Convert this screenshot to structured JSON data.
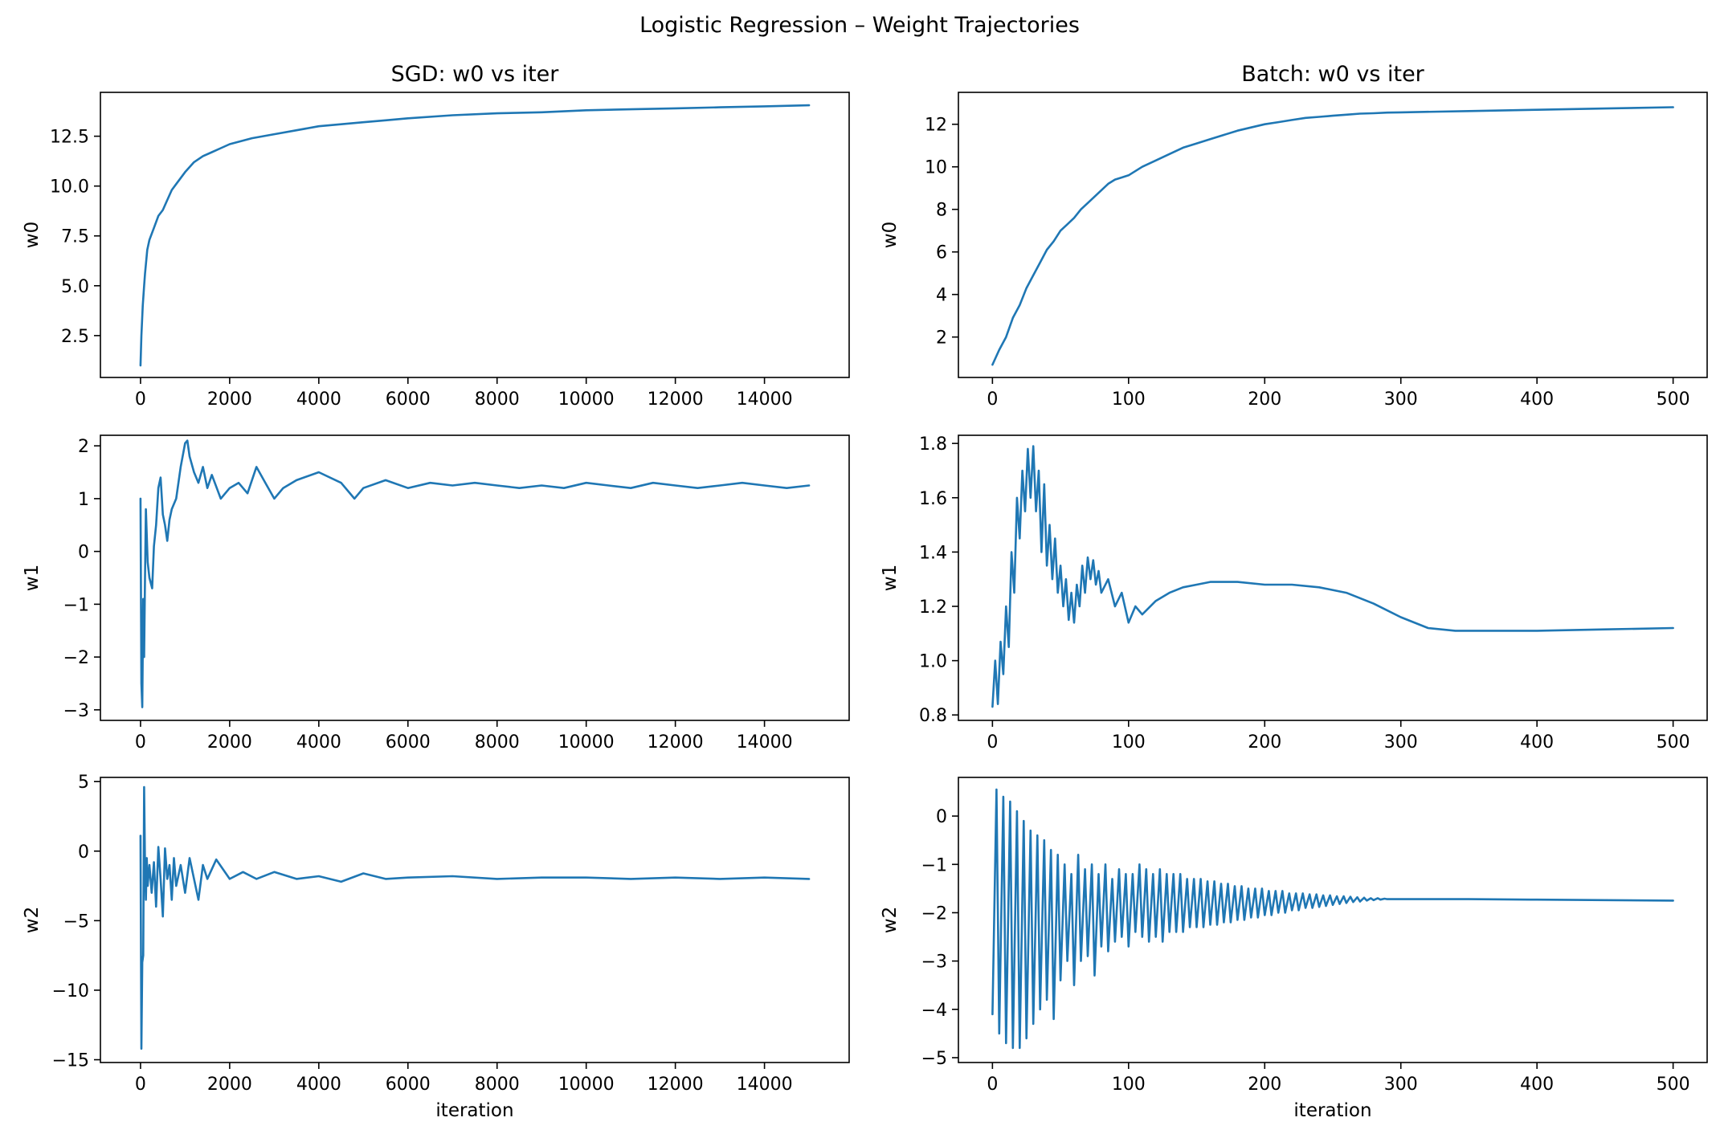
{
  "figure": {
    "suptitle": "Logistic Regression – Weight Trajectories",
    "line_color": "#1f77b4"
  },
  "chart_data": [
    {
      "type": "line",
      "title": "SGD: w0 vs iter",
      "xlabel": "",
      "ylabel": "w0",
      "xlim": [
        -900,
        15900
      ],
      "ylim": [
        0.4,
        14.7
      ],
      "xticks": [
        0,
        2000,
        4000,
        6000,
        8000,
        10000,
        12000,
        14000
      ],
      "yticks": [
        2.5,
        5.0,
        7.5,
        10.0,
        12.5
      ],
      "ytick_labels": [
        "2.5",
        "5.0",
        "7.5",
        "10.0",
        "12.5"
      ],
      "grid": false,
      "series": [
        {
          "x": [
            0,
            20,
            50,
            80,
            100,
            150,
            200,
            300,
            400,
            500,
            600,
            700,
            800,
            900,
            1000,
            1200,
            1400,
            1600,
            1800,
            2000,
            2500,
            3000,
            3500,
            4000,
            4500,
            5000,
            5500,
            6000,
            7000,
            8000,
            9000,
            10000,
            11000,
            12000,
            13000,
            14000,
            15000
          ],
          "y": [
            1.0,
            2.5,
            4.0,
            5.0,
            5.6,
            6.8,
            7.3,
            7.9,
            8.5,
            8.8,
            9.3,
            9.8,
            10.1,
            10.4,
            10.7,
            11.2,
            11.5,
            11.7,
            11.9,
            12.1,
            12.4,
            12.6,
            12.8,
            13.0,
            13.1,
            13.2,
            13.3,
            13.4,
            13.55,
            13.65,
            13.7,
            13.8,
            13.85,
            13.9,
            13.95,
            14.0,
            14.05
          ]
        }
      ]
    },
    {
      "type": "line",
      "title": "Batch: w0 vs iter",
      "xlabel": "",
      "ylabel": "w0",
      "xlim": [
        -25,
        525
      ],
      "ylim": [
        0.1,
        13.5
      ],
      "xticks": [
        0,
        100,
        200,
        300,
        400,
        500
      ],
      "yticks": [
        2,
        4,
        6,
        8,
        10,
        12
      ],
      "grid": false,
      "series": [
        {
          "x": [
            0,
            5,
            10,
            15,
            20,
            25,
            30,
            35,
            40,
            45,
            50,
            55,
            60,
            65,
            70,
            75,
            80,
            85,
            90,
            95,
            100,
            110,
            120,
            130,
            140,
            150,
            160,
            170,
            180,
            190,
            200,
            210,
            220,
            230,
            240,
            250,
            260,
            270,
            280,
            290,
            300,
            350,
            400,
            450,
            500
          ],
          "y": [
            0.7,
            1.4,
            2.0,
            2.9,
            3.5,
            4.3,
            4.9,
            5.5,
            6.1,
            6.5,
            7.0,
            7.3,
            7.6,
            8.0,
            8.3,
            8.6,
            8.9,
            9.2,
            9.4,
            9.5,
            9.6,
            10.0,
            10.3,
            10.6,
            10.9,
            11.1,
            11.3,
            11.5,
            11.7,
            11.85,
            12.0,
            12.1,
            12.2,
            12.3,
            12.35,
            12.4,
            12.45,
            12.5,
            12.52,
            12.55,
            12.56,
            12.62,
            12.68,
            12.74,
            12.8
          ]
        }
      ]
    },
    {
      "type": "line",
      "title": "",
      "xlabel": "",
      "ylabel": "w1",
      "xlim": [
        -900,
        15900
      ],
      "ylim": [
        -3.2,
        2.2
      ],
      "xticks": [
        0,
        2000,
        4000,
        6000,
        8000,
        10000,
        12000,
        14000
      ],
      "yticks": [
        -3,
        -2,
        -1,
        0,
        1,
        2
      ],
      "ytick_labels": [
        "−3",
        "−2",
        "−1",
        "0",
        "1",
        "2"
      ],
      "grid": false,
      "series": [
        {
          "x": [
            0,
            20,
            40,
            60,
            80,
            100,
            120,
            160,
            200,
            260,
            300,
            350,
            400,
            450,
            500,
            550,
            600,
            650,
            700,
            800,
            900,
            1000,
            1050,
            1100,
            1200,
            1300,
            1400,
            1500,
            1600,
            1800,
            2000,
            2200,
            2400,
            2600,
            2800,
            3000,
            3200,
            3500,
            4000,
            4500,
            4800,
            5000,
            5500,
            6000,
            6500,
            7000,
            7500,
            8000,
            8500,
            9000,
            9500,
            10000,
            10500,
            11000,
            11500,
            12000,
            12500,
            13000,
            13500,
            14000,
            14500,
            15000
          ],
          "y": [
            1.0,
            -2.5,
            -2.95,
            -0.9,
            -2.0,
            -0.5,
            0.8,
            -0.2,
            -0.5,
            -0.7,
            0.1,
            0.5,
            1.2,
            1.4,
            0.7,
            0.5,
            0.2,
            0.6,
            0.8,
            1.0,
            1.6,
            2.05,
            2.1,
            1.8,
            1.5,
            1.3,
            1.6,
            1.2,
            1.45,
            1.0,
            1.2,
            1.3,
            1.1,
            1.6,
            1.3,
            1.0,
            1.2,
            1.35,
            1.5,
            1.3,
            1.0,
            1.2,
            1.35,
            1.2,
            1.3,
            1.25,
            1.3,
            1.25,
            1.2,
            1.25,
            1.2,
            1.3,
            1.25,
            1.2,
            1.3,
            1.25,
            1.2,
            1.25,
            1.3,
            1.25,
            1.2,
            1.25
          ]
        }
      ]
    },
    {
      "type": "line",
      "title": "",
      "xlabel": "",
      "ylabel": "w1",
      "xlim": [
        -25,
        525
      ],
      "ylim": [
        0.78,
        1.83
      ],
      "xticks": [
        0,
        100,
        200,
        300,
        400,
        500
      ],
      "yticks": [
        0.8,
        1.0,
        1.2,
        1.4,
        1.6,
        1.8
      ],
      "ytick_labels": [
        "0.8",
        "1.0",
        "1.2",
        "1.4",
        "1.6",
        "1.8"
      ],
      "grid": false,
      "series": [
        {
          "x": [
            0,
            2,
            4,
            6,
            8,
            10,
            12,
            14,
            16,
            18,
            20,
            22,
            24,
            26,
            28,
            30,
            32,
            34,
            36,
            38,
            40,
            42,
            44,
            46,
            48,
            50,
            52,
            54,
            56,
            58,
            60,
            62,
            64,
            66,
            68,
            70,
            72,
            74,
            76,
            78,
            80,
            85,
            90,
            95,
            100,
            105,
            110,
            120,
            130,
            140,
            150,
            160,
            180,
            200,
            220,
            240,
            260,
            280,
            300,
            320,
            340,
            360,
            380,
            400,
            450,
            500
          ],
          "y": [
            0.83,
            1.0,
            0.84,
            1.07,
            0.95,
            1.2,
            1.05,
            1.4,
            1.25,
            1.6,
            1.45,
            1.7,
            1.55,
            1.78,
            1.6,
            1.79,
            1.55,
            1.7,
            1.4,
            1.65,
            1.35,
            1.5,
            1.3,
            1.45,
            1.25,
            1.35,
            1.2,
            1.3,
            1.15,
            1.25,
            1.14,
            1.28,
            1.2,
            1.35,
            1.25,
            1.38,
            1.3,
            1.37,
            1.28,
            1.33,
            1.25,
            1.3,
            1.2,
            1.25,
            1.14,
            1.2,
            1.17,
            1.22,
            1.25,
            1.27,
            1.28,
            1.29,
            1.29,
            1.28,
            1.28,
            1.27,
            1.25,
            1.21,
            1.16,
            1.12,
            1.11,
            1.11,
            1.11,
            1.11,
            1.115,
            1.12
          ]
        }
      ]
    },
    {
      "type": "line",
      "title": "",
      "xlabel": "iteration",
      "ylabel": "w2",
      "xlim": [
        -900,
        15900
      ],
      "ylim": [
        -15.2,
        5.3
      ],
      "xticks": [
        0,
        2000,
        4000,
        6000,
        8000,
        10000,
        12000,
        14000
      ],
      "yticks": [
        -15,
        -10,
        -5,
        0,
        5
      ],
      "ytick_labels": [
        "−15",
        "−10",
        "−5",
        "0",
        "5"
      ],
      "grid": false,
      "series": [
        {
          "x": [
            0,
            20,
            40,
            60,
            80,
            100,
            120,
            140,
            160,
            200,
            250,
            300,
            350,
            400,
            450,
            500,
            550,
            600,
            650,
            700,
            750,
            800,
            900,
            1000,
            1100,
            1200,
            1300,
            1400,
            1500,
            1700,
            2000,
            2300,
            2600,
            3000,
            3500,
            4000,
            4500,
            5000,
            5500,
            6000,
            7000,
            8000,
            9000,
            10000,
            11000,
            12000,
            13000,
            14000,
            15000
          ],
          "y": [
            1.1,
            -14.2,
            -8.0,
            -7.5,
            4.6,
            -1.0,
            -3.5,
            -0.5,
            -2.5,
            -1.0,
            -3.0,
            -0.8,
            -4.0,
            0.3,
            -2.0,
            -4.7,
            0.2,
            -2.0,
            -1.0,
            -3.5,
            -0.5,
            -2.5,
            -1.0,
            -3.0,
            -0.5,
            -2.0,
            -3.5,
            -1.0,
            -2.0,
            -0.6,
            -2.0,
            -1.5,
            -2.0,
            -1.5,
            -2.0,
            -1.8,
            -2.2,
            -1.6,
            -2.0,
            -1.9,
            -1.8,
            -2.0,
            -1.9,
            -1.9,
            -2.0,
            -1.9,
            -2.0,
            -1.9,
            -2.0
          ]
        }
      ]
    },
    {
      "type": "line",
      "title": "",
      "xlabel": "iteration",
      "ylabel": "w2",
      "xlim": [
        -25,
        525
      ],
      "ylim": [
        -5.1,
        0.8
      ],
      "xticks": [
        0,
        100,
        200,
        300,
        400,
        500
      ],
      "yticks": [
        -5,
        -4,
        -3,
        -2,
        -1,
        0
      ],
      "ytick_labels": [
        "−5",
        "−4",
        "−3",
        "−2",
        "−1",
        "0"
      ],
      "grid": false,
      "series": [
        {
          "x": [
            0,
            3,
            5,
            8,
            10,
            13,
            15,
            18,
            20,
            23,
            25,
            28,
            30,
            33,
            35,
            38,
            40,
            43,
            45,
            48,
            50,
            53,
            55,
            58,
            60,
            63,
            65,
            68,
            70,
            73,
            75,
            78,
            80,
            83,
            85,
            88,
            90,
            93,
            95,
            98,
            100,
            103,
            105,
            108,
            110,
            113,
            115,
            118,
            120,
            123,
            125,
            128,
            130,
            133,
            135,
            138,
            140,
            143,
            145,
            148,
            150,
            153,
            155,
            158,
            160,
            163,
            165,
            168,
            170,
            173,
            175,
            178,
            180,
            183,
            185,
            188,
            190,
            193,
            195,
            198,
            200,
            203,
            205,
            208,
            210,
            213,
            215,
            218,
            220,
            223,
            225,
            228,
            230,
            233,
            235,
            238,
            240,
            243,
            245,
            248,
            250,
            253,
            255,
            258,
            260,
            263,
            265,
            268,
            270,
            273,
            275,
            278,
            280,
            283,
            285,
            288,
            290,
            300,
            320,
            350,
            400,
            450,
            500
          ],
          "y": [
            -4.1,
            0.55,
            -4.5,
            0.4,
            -4.7,
            0.3,
            -4.8,
            0.1,
            -4.8,
            -0.1,
            -4.6,
            -0.3,
            -4.3,
            -0.4,
            -4.0,
            -0.5,
            -3.8,
            -0.7,
            -4.2,
            -0.8,
            -3.4,
            -1.0,
            -3.0,
            -1.2,
            -3.5,
            -0.8,
            -3.0,
            -1.1,
            -2.9,
            -1.0,
            -3.3,
            -1.2,
            -2.7,
            -1.0,
            -2.8,
            -1.3,
            -2.6,
            -1.1,
            -2.5,
            -1.2,
            -2.7,
            -1.2,
            -2.4,
            -1.0,
            -2.5,
            -1.1,
            -2.6,
            -1.2,
            -2.5,
            -1.1,
            -2.6,
            -1.2,
            -2.4,
            -1.2,
            -2.4,
            -1.2,
            -2.4,
            -1.3,
            -2.3,
            -1.3,
            -2.3,
            -1.3,
            -2.3,
            -1.35,
            -2.25,
            -1.35,
            -2.25,
            -1.4,
            -2.2,
            -1.4,
            -2.2,
            -1.45,
            -2.15,
            -1.45,
            -2.15,
            -1.5,
            -2.1,
            -1.5,
            -2.1,
            -1.5,
            -2.05,
            -1.55,
            -2.05,
            -1.55,
            -2.0,
            -1.55,
            -2.0,
            -1.6,
            -1.95,
            -1.6,
            -1.95,
            -1.6,
            -1.9,
            -1.62,
            -1.9,
            -1.62,
            -1.88,
            -1.64,
            -1.86,
            -1.64,
            -1.84,
            -1.66,
            -1.82,
            -1.66,
            -1.8,
            -1.67,
            -1.78,
            -1.68,
            -1.77,
            -1.69,
            -1.75,
            -1.7,
            -1.74,
            -1.7,
            -1.73,
            -1.71,
            -1.72,
            -1.72,
            -1.72,
            -1.72,
            -1.73,
            -1.74,
            -1.75
          ]
        }
      ]
    }
  ]
}
